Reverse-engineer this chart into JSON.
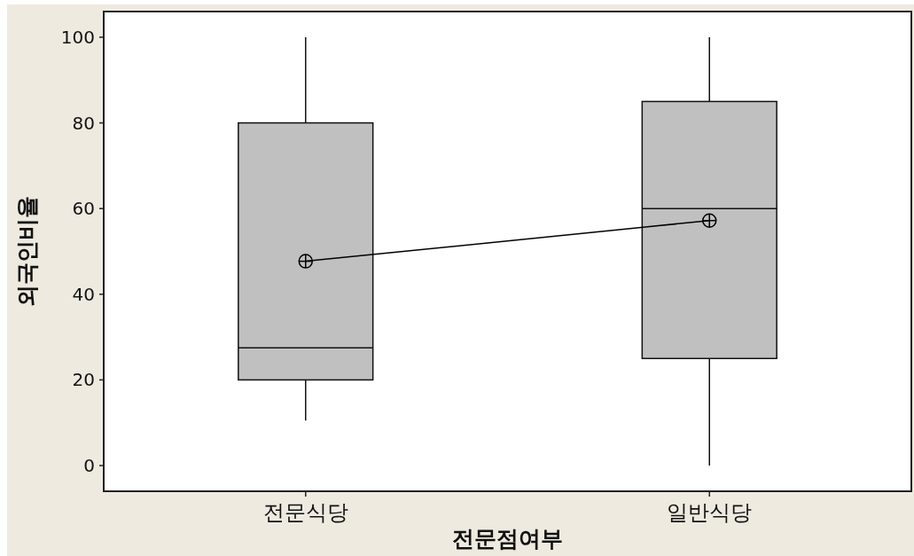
{
  "chart_data": {
    "type": "box",
    "xlabel": "전문점여부",
    "ylabel": "외국인비율",
    "categories": [
      "전문식당",
      "일반식당"
    ],
    "ylim": [
      -6,
      106
    ],
    "yticks": [
      0,
      20,
      40,
      60,
      80,
      100
    ],
    "series": [
      {
        "color": "#c0c0c0",
        "boxes": [
          {
            "low": 10.5,
            "q1": 20,
            "median": 27.5,
            "q3": 80,
            "high": 100
          },
          {
            "low": 0,
            "q1": 25,
            "median": 60,
            "q3": 85,
            "high": 100
          }
        ]
      },
      {
        "type": "line",
        "color": "#000000",
        "values": [
          47.7,
          57.2
        ],
        "marker": "circle"
      }
    ]
  }
}
